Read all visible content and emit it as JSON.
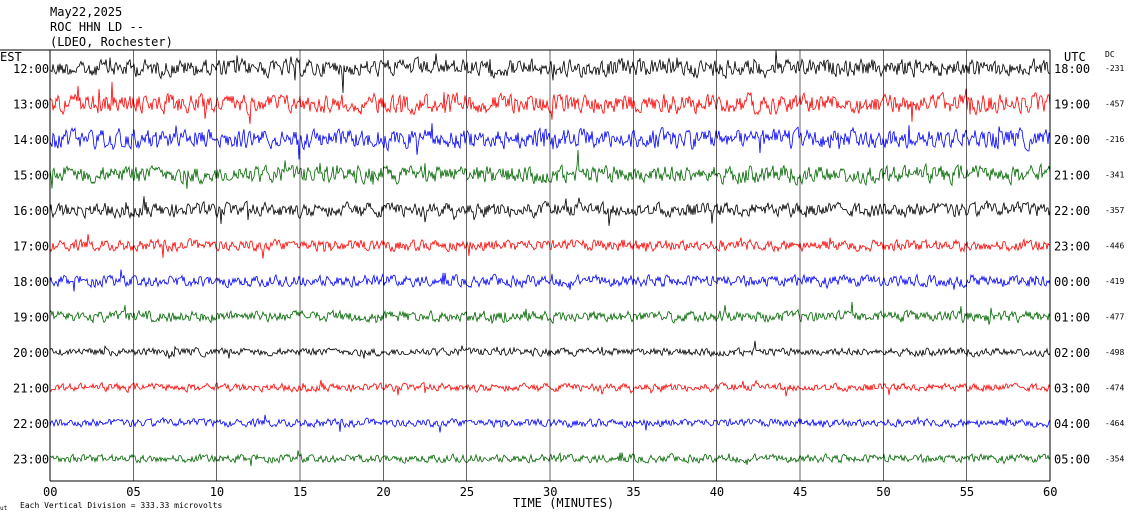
{
  "header": {
    "date": "May22,2025",
    "station": "ROC HHN LD --",
    "location": "(LDEO, Rochester)"
  },
  "left_axis_label": "EST",
  "right_axis_label": "UTC",
  "dc_label": "DC",
  "footer": {
    "scale_text": "Each Vertical Division =  333.33 microvolts",
    "corner_mark": "ut"
  },
  "chart_data": {
    "type": "line",
    "xlabel": "TIME (MINUTES)",
    "xlim": [
      0,
      60
    ],
    "x_ticks": [
      "00",
      "05",
      "10",
      "15",
      "20",
      "25",
      "30",
      "35",
      "40",
      "45",
      "50",
      "55",
      "60"
    ],
    "trace_colors": [
      "#000000",
      "#ff0000",
      "#0000ff",
      "#006600"
    ],
    "rows": [
      {
        "est": "12:00",
        "utc": "18:00",
        "dc": "-231",
        "color": "#000000",
        "amp": 0.55
      },
      {
        "est": "13:00",
        "utc": "19:00",
        "dc": "-457",
        "color": "#ff0000",
        "amp": 0.6
      },
      {
        "est": "14:00",
        "utc": "20:00",
        "dc": "-216",
        "color": "#0000ff",
        "amp": 0.6
      },
      {
        "est": "15:00",
        "utc": "21:00",
        "dc": "-341",
        "color": "#006600",
        "amp": 0.55
      },
      {
        "est": "16:00",
        "utc": "22:00",
        "dc": "-357",
        "color": "#000000",
        "amp": 0.45
      },
      {
        "est": "17:00",
        "utc": "23:00",
        "dc": "-446",
        "color": "#ff0000",
        "amp": 0.35
      },
      {
        "est": "18:00",
        "utc": "00:00",
        "dc": "-419",
        "color": "#0000ff",
        "amp": 0.35
      },
      {
        "est": "19:00",
        "utc": "01:00",
        "dc": "-477",
        "color": "#006600",
        "amp": 0.35
      },
      {
        "est": "20:00",
        "utc": "02:00",
        "dc": "-498",
        "color": "#000000",
        "amp": 0.25
      },
      {
        "est": "21:00",
        "utc": "03:00",
        "dc": "-474",
        "color": "#ff0000",
        "amp": 0.25
      },
      {
        "est": "22:00",
        "utc": "04:00",
        "dc": "-464",
        "color": "#0000ff",
        "amp": 0.25
      },
      {
        "est": "23:00",
        "utc": "05:00",
        "dc": "-354",
        "color": "#006600",
        "amp": 0.25
      }
    ]
  }
}
